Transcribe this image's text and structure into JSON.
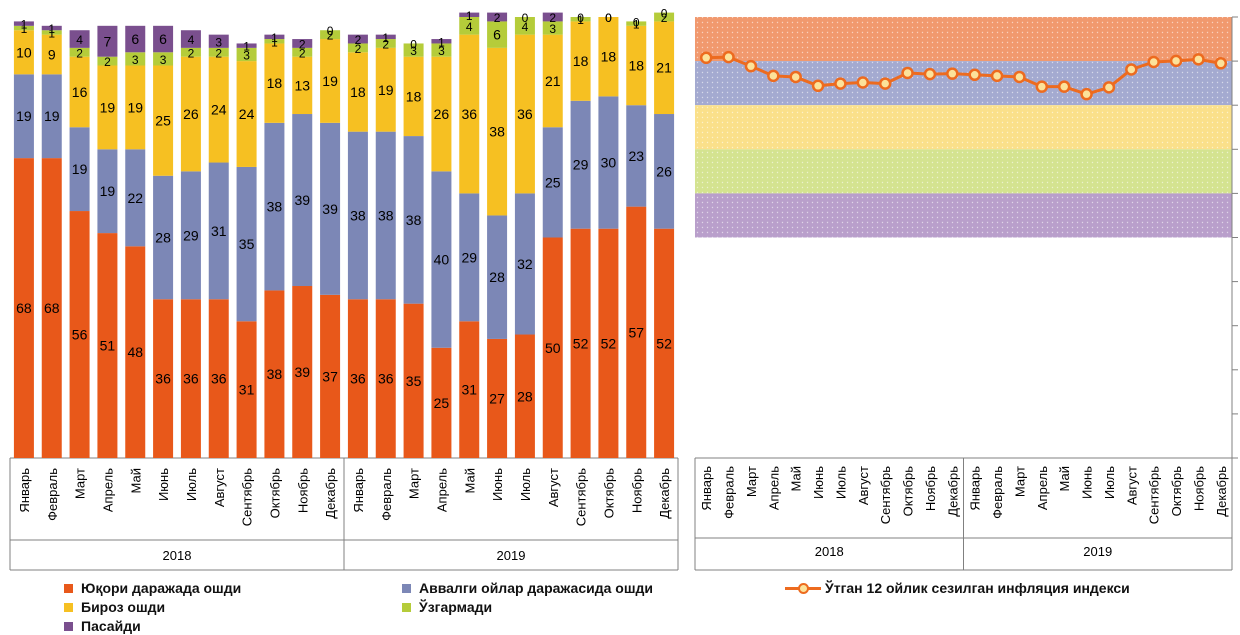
{
  "colors": {
    "high": "#e8581a",
    "previous": "#7c87b6",
    "slight": "#f6c022",
    "unchanged": "#b5cc3a",
    "decreased": "#7a4f8e",
    "line": "#ed6b1f",
    "marker_fill": "#fce29a",
    "band_top": "#f1996e",
    "band_2": "#a4aad0",
    "band_3": "#fae08a",
    "band_4": "#d4e390",
    "band_5": "#b99fcb"
  },
  "chart_data": [
    {
      "type": "bar",
      "stacked": true,
      "categories": [
        "Январь",
        "Февраль",
        "Март",
        "Апрель",
        "Май",
        "Июнь",
        "Июль",
        "Август",
        "Сентябрь",
        "Октябрь",
        "Ноябрь",
        "Декабрь",
        "Январь",
        "Февраль",
        "Март",
        "Апрель",
        "Май",
        "Июнь",
        "Июль",
        "Август",
        "Сентябрь",
        "Октябрь",
        "Ноябрь",
        "Декабрь"
      ],
      "groups": [
        {
          "label": "2018",
          "from": 0,
          "to": 11
        },
        {
          "label": "2019",
          "from": 12,
          "to": 23
        }
      ],
      "ylim": [
        0,
        100
      ],
      "series": [
        {
          "name": "Юқори даражада ошди",
          "color_key": "high",
          "values": [
            68,
            68,
            56,
            51,
            48,
            36,
            36,
            36,
            31,
            38,
            39,
            37,
            36,
            36,
            35,
            25,
            31,
            27,
            28,
            50,
            52,
            52,
            57,
            52
          ]
        },
        {
          "name": "Аввалги ойлар даражасида ошди",
          "color_key": "previous",
          "values": [
            19,
            19,
            19,
            19,
            22,
            28,
            29,
            31,
            35,
            38,
            39,
            39,
            38,
            38,
            38,
            40,
            29,
            28,
            32,
            25,
            29,
            30,
            23,
            26
          ]
        },
        {
          "name": "Бироз ошди",
          "color_key": "slight",
          "values": [
            10,
            9,
            16,
            19,
            19,
            25,
            26,
            24,
            24,
            18,
            13,
            19,
            18,
            19,
            18,
            26,
            36,
            38,
            36,
            21,
            18,
            18,
            18,
            21
          ]
        },
        {
          "name": "Ўзгармади",
          "color_key": "unchanged",
          "values": [
            1,
            1,
            2,
            2,
            3,
            3,
            2,
            2,
            3,
            1,
            2,
            2,
            2,
            2,
            3,
            3,
            4,
            6,
            4,
            3,
            1,
            0,
            1,
            2
          ]
        },
        {
          "name": "Пасайди",
          "color_key": "decreased",
          "values": [
            1,
            1,
            4,
            7,
            6,
            6,
            4,
            3,
            1,
            1,
            2,
            0,
            2,
            1,
            0,
            1,
            1,
            2,
            0,
            2,
            0,
            0,
            0,
            0
          ]
        }
      ],
      "legend_position": "bottom"
    },
    {
      "type": "line",
      "categories": [
        "Январь",
        "Февраль",
        "Март",
        "Апрель",
        "Май",
        "Июнь",
        "Июль",
        "Август",
        "Сентябрь",
        "Октябрь",
        "Ноябрь",
        "Декабрь",
        "Январь",
        "Февраль",
        "Март",
        "Апрель",
        "Май",
        "Июнь",
        "Июль",
        "Август",
        "Сентябрь",
        "Октябрь",
        "Ноябрь",
        "Декабрь"
      ],
      "groups": [
        {
          "label": "2018",
          "from": 0,
          "to": 11
        },
        {
          "label": "2019",
          "from": 12,
          "to": 23
        }
      ],
      "ylim": [
        0,
        200
      ],
      "bands": [
        {
          "from": 180,
          "to": 200,
          "color_key": "band_top"
        },
        {
          "from": 160,
          "to": 180,
          "color_key": "band_2"
        },
        {
          "from": 140,
          "to": 160,
          "color_key": "band_3"
        },
        {
          "from": 120,
          "to": 140,
          "color_key": "band_4"
        },
        {
          "from": 100,
          "to": 120,
          "color_key": "band_5"
        }
      ],
      "series": [
        {
          "name": "Ўтган 12 ойлик сезилган инфляция индекси",
          "color_key": "line",
          "values": [
            181.5,
            181.8,
            177.7,
            173.3,
            172.8,
            168.8,
            169.8,
            170.3,
            169.8,
            174.6,
            174.1,
            174.3,
            173.8,
            173.3,
            172.8,
            168.4,
            168.4,
            165.0,
            168.1,
            176.2,
            179.6,
            180.1,
            180.8,
            179.0
          ]
        }
      ],
      "legend_position": "bottom"
    }
  ],
  "legend": {
    "high": "Юқори даражада ошди",
    "previous": "Аввалги ойлар даражасида ошди",
    "slight": "Бироз ошди",
    "unchanged": "Ўзгармади",
    "decreased": "Пасайди",
    "line": "Ўтган 12 ойлик сезилган инфляция индекси"
  }
}
